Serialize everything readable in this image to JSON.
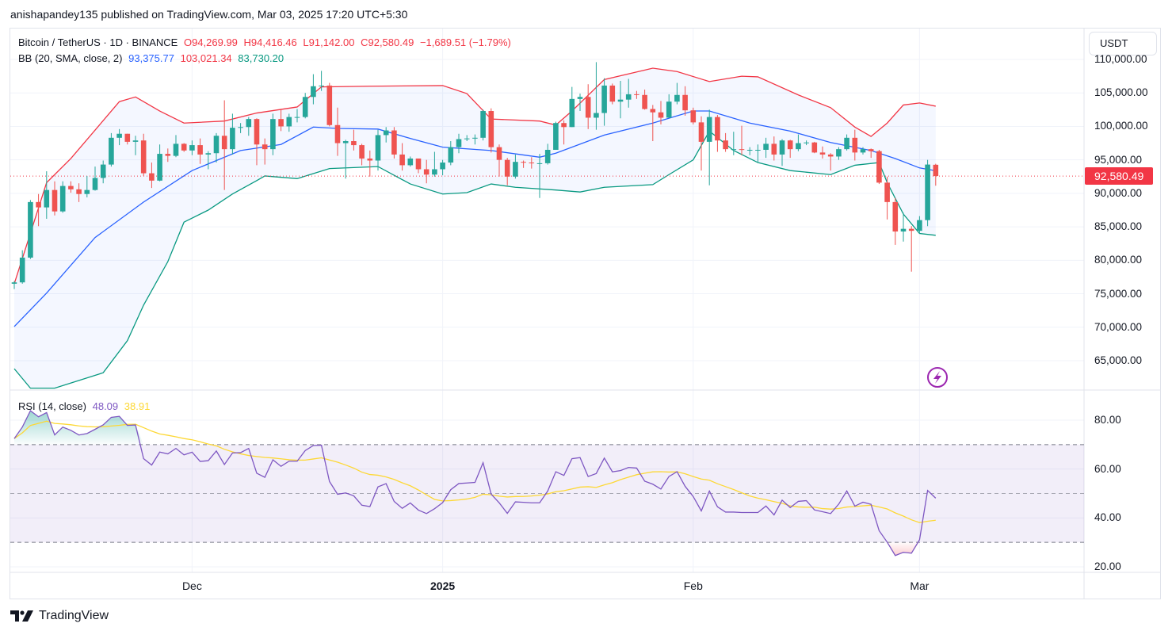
{
  "header": {
    "published_line": "anishapandey135 published on TradingView.com, Mar 03, 2025 17:20 UTC+5:30"
  },
  "legend": {
    "symbol": "Bitcoin / TetherUS · 1D · BINANCE",
    "open": "O94,269.99",
    "high": "H94,416.46",
    "low": "L91,142.00",
    "close": "C92,580.49",
    "change": "−1,689.51 (−1.79%)",
    "bb_label": "BB (20, SMA, close, 2)",
    "bb_basis": "93,375.77",
    "bb_upper": "103,021.34",
    "bb_lower": "83,730.20",
    "rsi_label": "RSI (14, close)",
    "rsi_value": "48.09",
    "rsi_ma": "38.91"
  },
  "price_axis": {
    "currency": "USDT",
    "ticks": [
      "110,000.00",
      "105,000.00",
      "100,000.00",
      "95,000.00",
      "90,000.00",
      "85,000.00",
      "80,000.00",
      "75,000.00",
      "70,000.00",
      "65,000.00"
    ],
    "last_price": "92,580.49"
  },
  "rsi_axis": {
    "ticks": [
      "80.00",
      "60.00",
      "40.00",
      "20.00"
    ]
  },
  "time_axis": {
    "ticks": [
      "Dec",
      "2025",
      "Feb",
      "Mar"
    ]
  },
  "footer": {
    "brand": "TradingView"
  },
  "colors": {
    "up": "#26a69a",
    "down": "#ef5350",
    "bb_upper": "#f23645",
    "bb_basis": "#2962ff",
    "bb_lower": "#089981",
    "rsi": "#7e57c2",
    "rsi_ma": "#fdd835",
    "alert": "#9c27b0"
  },
  "icons": {
    "alert": "lightning-icon",
    "logo": "tradingview-logo-icon"
  },
  "chart_data": {
    "type": "candlestick",
    "title": "Bitcoin / TetherUS · 1D · BINANCE",
    "ylim": [
      60500,
      111000
    ],
    "rsi_ylim": [
      15,
      88
    ],
    "rsi_levels": [
      70,
      50,
      30
    ],
    "grid": true,
    "candles_columns": [
      "date",
      "open",
      "high",
      "low",
      "close"
    ],
    "candles": [
      [
        "2024-11-09",
        76500,
        76900,
        75700,
        76700
      ],
      [
        "2024-11-10",
        76700,
        81500,
        76500,
        80400
      ],
      [
        "2024-11-11",
        80400,
        89000,
        80200,
        88700
      ],
      [
        "2024-11-12",
        88700,
        89900,
        85100,
        87900
      ],
      [
        "2024-11-13",
        87900,
        93300,
        86200,
        90500
      ],
      [
        "2024-11-14",
        90500,
        91800,
        86700,
        87300
      ],
      [
        "2024-11-15",
        87300,
        91800,
        87100,
        91100
      ],
      [
        "2024-11-16",
        91100,
        91800,
        90100,
        90600
      ],
      [
        "2024-11-17",
        90600,
        91500,
        88700,
        89900
      ],
      [
        "2024-11-18",
        89900,
        92600,
        89400,
        90500
      ],
      [
        "2024-11-19",
        90500,
        94000,
        90400,
        92300
      ],
      [
        "2024-11-20",
        92300,
        94900,
        91500,
        94300
      ],
      [
        "2024-11-21",
        94300,
        99000,
        94000,
        98300
      ],
      [
        "2024-11-22",
        98300,
        99600,
        97200,
        98900
      ],
      [
        "2024-11-23",
        98900,
        98900,
        97300,
        97700
      ],
      [
        "2024-11-24",
        97700,
        98600,
        95700,
        97900
      ],
      [
        "2024-11-25",
        97900,
        98900,
        92600,
        93000
      ],
      [
        "2024-11-26",
        93000,
        94600,
        90800,
        91900
      ],
      [
        "2024-11-27",
        91900,
        97300,
        91800,
        95900
      ],
      [
        "2024-11-28",
        95900,
        96700,
        94700,
        95600
      ],
      [
        "2024-11-29",
        95600,
        98700,
        95400,
        97400
      ],
      [
        "2024-11-30",
        97400,
        97500,
        96200,
        96400
      ],
      [
        "2024-12-01",
        96400,
        97900,
        95700,
        97200
      ],
      [
        "2024-12-02",
        97200,
        98200,
        94400,
        95800
      ],
      [
        "2024-12-03",
        95800,
        96300,
        93600,
        96000
      ],
      [
        "2024-12-04",
        96000,
        99000,
        94600,
        98600
      ],
      [
        "2024-12-05",
        98600,
        103900,
        90500,
        96600
      ],
      [
        "2024-12-06",
        96600,
        101900,
        95800,
        99800
      ],
      [
        "2024-12-07",
        99800,
        100500,
        99000,
        99900
      ],
      [
        "2024-12-08",
        99900,
        101400,
        98600,
        101100
      ],
      [
        "2024-12-09",
        101100,
        101200,
        94200,
        97300
      ],
      [
        "2024-12-10",
        97300,
        98200,
        94300,
        96600
      ],
      [
        "2024-12-11",
        96600,
        101900,
        95700,
        101100
      ],
      [
        "2024-12-12",
        101100,
        102500,
        99300,
        100000
      ],
      [
        "2024-12-13",
        100000,
        101900,
        99200,
        101400
      ],
      [
        "2024-12-14",
        101400,
        102600,
        100600,
        101400
      ],
      [
        "2024-12-15",
        101400,
        105000,
        101200,
        104400
      ],
      [
        "2024-12-16",
        104400,
        107800,
        103300,
        106000
      ],
      [
        "2024-12-17",
        106000,
        108300,
        105300,
        106100
      ],
      [
        "2024-12-18",
        106100,
        106500,
        100000,
        100200
      ],
      [
        "2024-12-19",
        100200,
        102800,
        95600,
        97500
      ],
      [
        "2024-12-20",
        97500,
        98000,
        92200,
        97800
      ],
      [
        "2024-12-21",
        97800,
        99500,
        96400,
        97200
      ],
      [
        "2024-12-22",
        97200,
        97400,
        94200,
        95200
      ],
      [
        "2024-12-23",
        95200,
        96400,
        92500,
        94900
      ],
      [
        "2024-12-24",
        94900,
        99500,
        93400,
        98700
      ],
      [
        "2024-12-25",
        98700,
        99900,
        97600,
        99400
      ],
      [
        "2024-12-26",
        99400,
        99900,
        95200,
        95800
      ],
      [
        "2024-12-27",
        95800,
        97500,
        93400,
        94200
      ],
      [
        "2024-12-28",
        94200,
        95500,
        94000,
        95200
      ],
      [
        "2024-12-29",
        95200,
        95200,
        93000,
        93600
      ],
      [
        "2024-12-30",
        93600,
        95000,
        91500,
        92800
      ],
      [
        "2024-12-31",
        92800,
        96200,
        92500,
        93600
      ],
      [
        "2025-01-01",
        93600,
        95000,
        92700,
        94600
      ],
      [
        "2025-01-02",
        94600,
        97800,
        94200,
        96900
      ],
      [
        "2025-01-03",
        96900,
        98900,
        96000,
        98100
      ],
      [
        "2025-01-04",
        98100,
        98700,
        97800,
        98200
      ],
      [
        "2025-01-05",
        98200,
        98800,
        97300,
        98300
      ],
      [
        "2025-01-06",
        98300,
        102500,
        97900,
        102300
      ],
      [
        "2025-01-07",
        102300,
        102700,
        96100,
        96900
      ],
      [
        "2025-01-08",
        96900,
        97300,
        92500,
        95000
      ],
      [
        "2025-01-09",
        95000,
        95300,
        91200,
        92500
      ],
      [
        "2025-01-10",
        92500,
        95800,
        92200,
        94700
      ],
      [
        "2025-01-11",
        94700,
        94900,
        93800,
        94600
      ],
      [
        "2025-01-12",
        94600,
        95400,
        93700,
        94500
      ],
      [
        "2025-01-13",
        94500,
        95900,
        89300,
        94500
      ],
      [
        "2025-01-14",
        94500,
        97400,
        94300,
        96500
      ],
      [
        "2025-01-15",
        96500,
        100700,
        96500,
        100500
      ],
      [
        "2025-01-16",
        100500,
        100900,
        97300,
        99900
      ],
      [
        "2025-01-17",
        99900,
        105900,
        99900,
        104100
      ],
      [
        "2025-01-18",
        104100,
        104900,
        102300,
        104400
      ],
      [
        "2025-01-19",
        104400,
        106300,
        99600,
        101300
      ],
      [
        "2025-01-20",
        101300,
        109600,
        99500,
        102000
      ],
      [
        "2025-01-21",
        102000,
        107200,
        100100,
        106100
      ],
      [
        "2025-01-22",
        106100,
        106400,
        103300,
        103700
      ],
      [
        "2025-01-23",
        103700,
        106800,
        101200,
        104000
      ],
      [
        "2025-01-24",
        104000,
        107100,
        102800,
        104800
      ],
      [
        "2025-01-25",
        104800,
        105300,
        104100,
        104700
      ],
      [
        "2025-01-26",
        104700,
        105500,
        102500,
        102600
      ],
      [
        "2025-01-27",
        102600,
        103200,
        97800,
        102100
      ],
      [
        "2025-01-28",
        102100,
        103800,
        100300,
        101300
      ],
      [
        "2025-01-29",
        101300,
        104800,
        101300,
        103700
      ],
      [
        "2025-01-30",
        103700,
        106500,
        103300,
        104700
      ],
      [
        "2025-01-31",
        104700,
        106000,
        101600,
        102400
      ],
      [
        "2025-02-01",
        102400,
        102800,
        100300,
        100600
      ],
      [
        "2025-02-02",
        100600,
        101500,
        93400,
        97700
      ],
      [
        "2025-02-03",
        97700,
        102500,
        91200,
        101400
      ],
      [
        "2025-02-04",
        101400,
        101700,
        96200,
        97900
      ],
      [
        "2025-02-05",
        97900,
        99000,
        96200,
        96600
      ],
      [
        "2025-02-06",
        96600,
        99200,
        95700,
        96600
      ],
      [
        "2025-02-07",
        96600,
        100100,
        95700,
        96500
      ],
      [
        "2025-02-08",
        96500,
        96900,
        95700,
        96500
      ],
      [
        "2025-02-09",
        96500,
        97300,
        94700,
        96500
      ],
      [
        "2025-02-10",
        96500,
        98300,
        95300,
        97400
      ],
      [
        "2025-02-11",
        97400,
        98500,
        94900,
        95800
      ],
      [
        "2025-02-12",
        95800,
        98100,
        94100,
        97900
      ],
      [
        "2025-02-13",
        97900,
        98000,
        95300,
        96600
      ],
      [
        "2025-02-14",
        96600,
        98800,
        96300,
        97500
      ],
      [
        "2025-02-15",
        97500,
        97900,
        97200,
        97600
      ],
      [
        "2025-02-16",
        97600,
        97700,
        96000,
        96100
      ],
      [
        "2025-02-17",
        96100,
        97000,
        95200,
        95800
      ],
      [
        "2025-02-18",
        95800,
        96000,
        93400,
        95500
      ],
      [
        "2025-02-19",
        95500,
        96900,
        95000,
        96600
      ],
      [
        "2025-02-20",
        96600,
        98800,
        96400,
        98300
      ],
      [
        "2025-02-21",
        98300,
        99500,
        94900,
        96100
      ],
      [
        "2025-02-22",
        96100,
        96900,
        95800,
        96600
      ],
      [
        "2025-02-23",
        96600,
        96700,
        95300,
        96300
      ],
      [
        "2025-02-24",
        96300,
        96500,
        91400,
        91600
      ],
      [
        "2025-02-25",
        91600,
        92500,
        86100,
        88700
      ],
      [
        "2025-02-26",
        88700,
        89300,
        82300,
        84300
      ],
      [
        "2025-02-27",
        84300,
        87100,
        82800,
        84700
      ],
      [
        "2025-02-28",
        84700,
        85100,
        78300,
        84400
      ],
      [
        "2025-03-01",
        84400,
        86600,
        84000,
        86000
      ],
      [
        "2025-03-02",
        86000,
        95000,
        85100,
        94300
      ],
      [
        "2025-03-03",
        94269.99,
        94416.46,
        91142.0,
        92580.49
      ]
    ],
    "bb_upper": [
      [
        "2024-11-09",
        76500
      ],
      [
        "2024-11-13",
        91600
      ],
      [
        "2024-11-16",
        95200
      ],
      [
        "2024-11-22",
        103700
      ],
      [
        "2024-11-24",
        104400
      ],
      [
        "2024-11-27",
        102300
      ],
      [
        "2024-11-30",
        100500
      ],
      [
        "2024-12-05",
        100800
      ],
      [
        "2024-12-09",
        102000
      ],
      [
        "2024-12-14",
        102900
      ],
      [
        "2024-12-17",
        105900
      ],
      [
        "2024-12-23",
        106000
      ],
      [
        "2025-01-01",
        106100
      ],
      [
        "2025-01-04",
        104900
      ],
      [
        "2025-01-07",
        101100
      ],
      [
        "2025-01-13",
        100800
      ],
      [
        "2025-01-15",
        100200
      ],
      [
        "2025-01-17",
        102300
      ],
      [
        "2025-01-21",
        107000
      ],
      [
        "2025-01-27",
        108700
      ],
      [
        "2025-01-30",
        108200
      ],
      [
        "2025-02-03",
        106700
      ],
      [
        "2025-02-07",
        107500
      ],
      [
        "2025-02-09",
        107400
      ],
      [
        "2025-02-14",
        104700
      ],
      [
        "2025-02-18",
        102800
      ],
      [
        "2025-02-21",
        99900
      ],
      [
        "2025-02-23",
        98500
      ],
      [
        "2025-02-25",
        100500
      ],
      [
        "2025-02-27",
        103200
      ],
      [
        "2025-03-01",
        103500
      ],
      [
        "2025-03-03",
        103021.34
      ]
    ],
    "bb_basis": [
      [
        "2024-11-09",
        70100
      ],
      [
        "2024-11-13",
        75100
      ],
      [
        "2024-11-19",
        83400
      ],
      [
        "2024-11-25",
        88700
      ],
      [
        "2024-12-01",
        93400
      ],
      [
        "2024-12-07",
        96400
      ],
      [
        "2024-12-12",
        97300
      ],
      [
        "2024-12-16",
        99900
      ],
      [
        "2024-12-19",
        99700
      ],
      [
        "2024-12-24",
        99600
      ],
      [
        "2024-12-28",
        98200
      ],
      [
        "2025-01-01",
        96900
      ],
      [
        "2025-01-07",
        96400
      ],
      [
        "2025-01-13",
        95400
      ],
      [
        "2025-01-15",
        96000
      ],
      [
        "2025-01-21",
        98700
      ],
      [
        "2025-01-27",
        100500
      ],
      [
        "2025-02-01",
        102300
      ],
      [
        "2025-02-03",
        102300
      ],
      [
        "2025-02-08",
        100500
      ],
      [
        "2025-02-13",
        99300
      ],
      [
        "2025-02-18",
        97600
      ],
      [
        "2025-02-23",
        96400
      ],
      [
        "2025-02-26",
        95200
      ],
      [
        "2025-03-01",
        93800
      ],
      [
        "2025-03-03",
        93375.77
      ]
    ],
    "bb_lower": [
      [
        "2024-11-09",
        63800
      ],
      [
        "2024-11-11",
        60900
      ],
      [
        "2024-11-14",
        60900
      ],
      [
        "2024-11-20",
        63200
      ],
      [
        "2024-11-23",
        68000
      ],
      [
        "2024-11-25",
        73300
      ],
      [
        "2024-11-28",
        79800
      ],
      [
        "2024-11-30",
        85700
      ],
      [
        "2024-12-03",
        87500
      ],
      [
        "2024-12-06",
        89900
      ],
      [
        "2024-12-09",
        91900
      ],
      [
        "2024-12-10",
        92600
      ],
      [
        "2024-12-14",
        92200
      ],
      [
        "2024-12-18",
        93700
      ],
      [
        "2024-12-24",
        94000
      ],
      [
        "2024-12-28",
        91400
      ],
      [
        "2025-01-01",
        89900
      ],
      [
        "2025-01-04",
        90100
      ],
      [
        "2025-01-07",
        91400
      ],
      [
        "2025-01-10",
        90900
      ],
      [
        "2025-01-15",
        90500
      ],
      [
        "2025-01-18",
        90200
      ],
      [
        "2025-01-21",
        90900
      ],
      [
        "2025-01-27",
        91300
      ],
      [
        "2025-01-29",
        92800
      ],
      [
        "2025-02-01",
        95000
      ],
      [
        "2025-02-03",
        99300
      ],
      [
        "2025-02-06",
        96400
      ],
      [
        "2025-02-09",
        94600
      ],
      [
        "2025-02-13",
        93400
      ],
      [
        "2025-02-18",
        92800
      ],
      [
        "2025-02-21",
        94200
      ],
      [
        "2025-02-24",
        94600
      ],
      [
        "2025-02-25",
        91600
      ],
      [
        "2025-02-27",
        86900
      ],
      [
        "2025-03-01",
        84000
      ],
      [
        "2025-03-03",
        83730.2
      ]
    ]
  }
}
